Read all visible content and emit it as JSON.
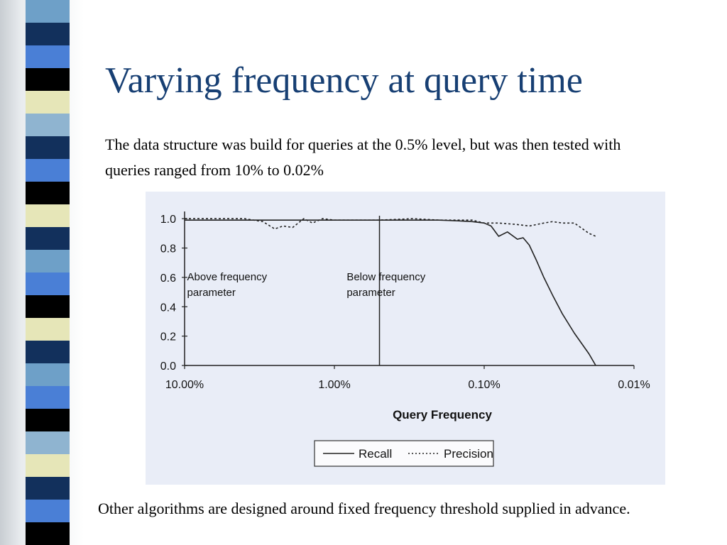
{
  "slide": {
    "title": "Varying frequency at query time",
    "intro": "The data structure was build for queries at the 0.5% level, but was then tested with queries ranged from 10% to 0.02%",
    "footer": "Other algorithms are designed around fixed frequency threshold supplied in advance."
  },
  "colors": {
    "title": "#173f73",
    "figure_background": "#e9edf7",
    "stripes": [
      "#6ea0c8",
      "#12305c",
      "#4a7fd6",
      "#000000",
      "#e6e6b8",
      "#8fb4d0",
      "#12305c",
      "#4a7fd6",
      "#000000",
      "#e6e6b8",
      "#12305c",
      "#6ea0c8",
      "#4a7fd6",
      "#000000",
      "#e6e6b8",
      "#12305c",
      "#6ea0c8",
      "#4a7fd6",
      "#000000",
      "#8fb4d0",
      "#e6e6b8",
      "#12305c",
      "#4a7fd6",
      "#000000"
    ]
  },
  "chart_data": {
    "type": "line",
    "xlabel": "Query Frequency",
    "ylabel": "",
    "x_scale": "log, reversed",
    "x_ticks": [
      "10.00%",
      "1.00%",
      "0.10%",
      "0.01%"
    ],
    "x_tick_values": [
      10,
      1,
      0.1,
      0.01
    ],
    "y_ticks": [
      "1.0",
      "0.8",
      "0.6",
      "0.4",
      "0.2",
      "0.0"
    ],
    "y_tick_values": [
      1.0,
      0.8,
      0.6,
      0.4,
      0.2,
      0.0
    ],
    "xlim": [
      10,
      0.01
    ],
    "ylim": [
      0,
      1.02
    ],
    "grid": false,
    "legend_position": "bottom",
    "divider_x": 0.5,
    "annotations": [
      {
        "text": [
          "Above frequency",
          "parameter"
        ],
        "x": 5,
        "y": 0.58
      },
      {
        "text": [
          "Below frequency",
          "parameter"
        ],
        "x": 0.43,
        "y": 0.58
      }
    ],
    "series": [
      {
        "name": "Recall",
        "style": "solid",
        "x": [
          10,
          5,
          2,
          1,
          0.5,
          0.3,
          0.2,
          0.15,
          0.12,
          0.1,
          0.09,
          0.08,
          0.07,
          0.06,
          0.055,
          0.05,
          0.045,
          0.04,
          0.035,
          0.03,
          0.025,
          0.02,
          0.018
        ],
        "y": [
          0.99,
          0.99,
          0.99,
          0.99,
          0.99,
          0.99,
          0.99,
          0.985,
          0.98,
          0.97,
          0.95,
          0.88,
          0.91,
          0.86,
          0.87,
          0.82,
          0.72,
          0.6,
          0.48,
          0.35,
          0.22,
          0.08,
          0.0
        ]
      },
      {
        "name": "Precision",
        "style": "dotted",
        "x": [
          10,
          4,
          3,
          2.5,
          2.2,
          1.9,
          1.6,
          1.4,
          1.2,
          1,
          0.5,
          0.3,
          0.2,
          0.15,
          0.12,
          0.1,
          0.08,
          0.06,
          0.05,
          0.04,
          0.035,
          0.03,
          0.025,
          0.02,
          0.018
        ],
        "y": [
          1.0,
          1.0,
          0.98,
          0.93,
          0.95,
          0.94,
          1.0,
          0.97,
          1.0,
          0.99,
          0.99,
          1.0,
          0.99,
          0.99,
          0.99,
          0.97,
          0.97,
          0.96,
          0.95,
          0.97,
          0.98,
          0.97,
          0.97,
          0.9,
          0.88
        ]
      }
    ]
  }
}
